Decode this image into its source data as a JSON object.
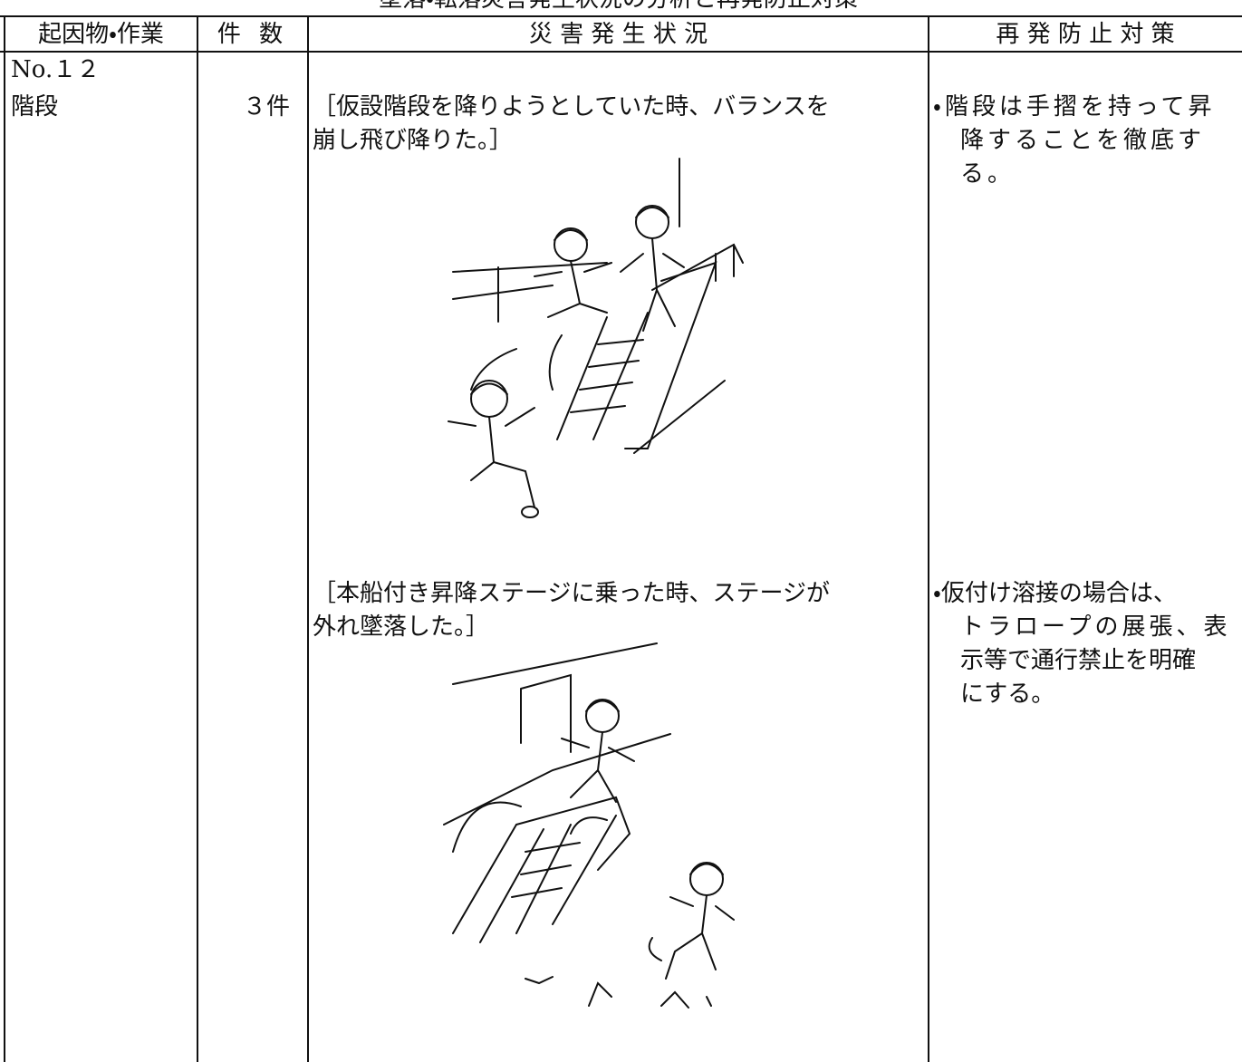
{
  "header": {
    "title": "墜落・転落災害発生状況の分析と再発防止対策"
  },
  "table": {
    "columns": [
      "起因物・作業",
      "件 数",
      "災 害 発 生 状 況",
      "再 発 防 止 対 策"
    ],
    "rows": [
      {
        "cause": {
          "number": "No.１２",
          "name": "階段"
        },
        "count": "３件",
        "situations": [
          {
            "lines": [
              "［仮設階段を降りようとしていた時、バランスを",
              "崩し飛び降りた。］"
            ]
          },
          {
            "lines": [
              "［本船付き昇降ステージに乗った時、ステージが",
              "外れ墜落した。］"
            ]
          }
        ],
        "countermeasures": [
          {
            "lines": [
              "・階段は手摺を持って昇",
              "降することを徹底す",
              "る。"
            ]
          },
          {
            "lines": [
              "・仮付け溶接の場合は、",
              "トラロープの展張、表",
              "示等で通行禁止を明確",
              "にする。"
            ]
          }
        ]
      }
    ]
  }
}
